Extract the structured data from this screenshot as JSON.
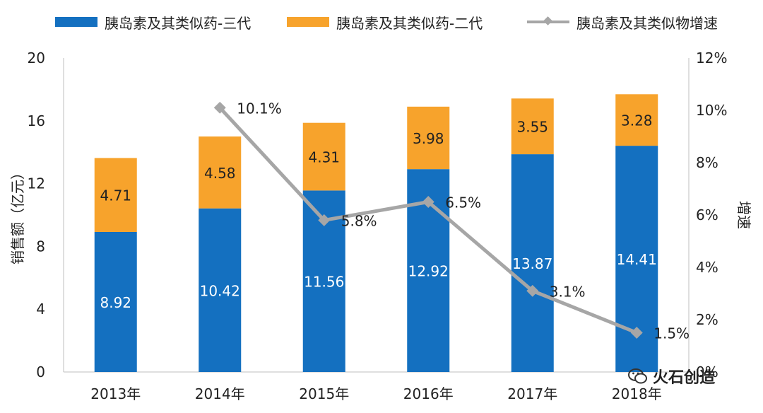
{
  "legend": {
    "gen3_label": "胰岛素及其类似药-三代",
    "gen2_label": "胰岛素及其类似药-二代",
    "growth_label": "胰岛素及其类似物增速"
  },
  "watermark": {
    "text": "火石创造"
  },
  "colors": {
    "gen3": "#1470c0",
    "gen2": "#f7a32c",
    "growth": "#a6a6a6",
    "axis": "#bfbfbf"
  },
  "chart_data": {
    "type": "bar",
    "stacked": true,
    "categories": [
      "2013年",
      "2014年",
      "2015年",
      "2016年",
      "2017年",
      "2018年"
    ],
    "series": [
      {
        "name": "胰岛素及其类似药-三代",
        "values": [
          8.92,
          10.42,
          11.56,
          12.92,
          13.87,
          14.41
        ],
        "labels": [
          "8.92",
          "10.42",
          "11.56",
          "12.92",
          "13.87",
          "14.41"
        ],
        "axis": "left"
      },
      {
        "name": "胰岛素及其类似药-二代",
        "values": [
          4.71,
          4.58,
          4.31,
          3.98,
          3.55,
          3.28
        ],
        "labels": [
          "4.71",
          "4.58",
          "4.31",
          "3.98",
          "3.55",
          "3.28"
        ],
        "axis": "left"
      }
    ],
    "line_series": {
      "name": "胰岛素及其类似物增速",
      "type": "line",
      "axis": "right",
      "categories": [
        "2014年",
        "2015年",
        "2016年",
        "2017年",
        "2018年"
      ],
      "values": [
        10.1,
        5.8,
        6.5,
        3.1,
        1.5
      ],
      "labels": [
        "10.1%",
        "5.8%",
        "6.5%",
        "3.1%",
        "1.5%"
      ]
    },
    "ylabel": "销售额（亿元）",
    "ylim": [
      0,
      20
    ],
    "yticks": [
      "0",
      "4",
      "8",
      "12",
      "16",
      "20"
    ],
    "y2label": "增速",
    "y2lim": [
      0,
      12
    ],
    "y2ticks": [
      "0%",
      "2%",
      "4%",
      "6%",
      "8%",
      "10%",
      "12%"
    ],
    "grid": false,
    "legend_position": "top"
  }
}
